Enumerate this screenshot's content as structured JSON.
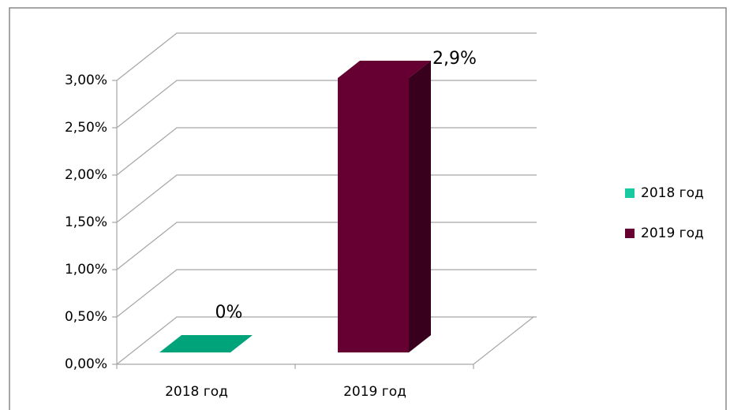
{
  "chart_data": {
    "type": "bar3d",
    "categories": [
      "2018 год",
      "2019 год"
    ],
    "values": [
      0,
      2.9
    ],
    "value_labels": [
      "0%",
      "2,9%"
    ],
    "colors": [
      "#00a37a",
      "#660033"
    ],
    "legend_colors": [
      "#19c9a0",
      "#660033"
    ],
    "ylim": [
      0,
      3
    ],
    "yticks": [
      {
        "value": 0,
        "label": "0,00%"
      },
      {
        "value": 0.5,
        "label": "0,50%"
      },
      {
        "value": 1,
        "label": "1,00%"
      },
      {
        "value": 1.5,
        "label": "1,50%"
      },
      {
        "value": 2,
        "label": "2,00%"
      },
      {
        "value": 2.5,
        "label": "2,50%"
      },
      {
        "value": 3,
        "label": "3,00%"
      }
    ],
    "grid": true,
    "legend": "right"
  }
}
